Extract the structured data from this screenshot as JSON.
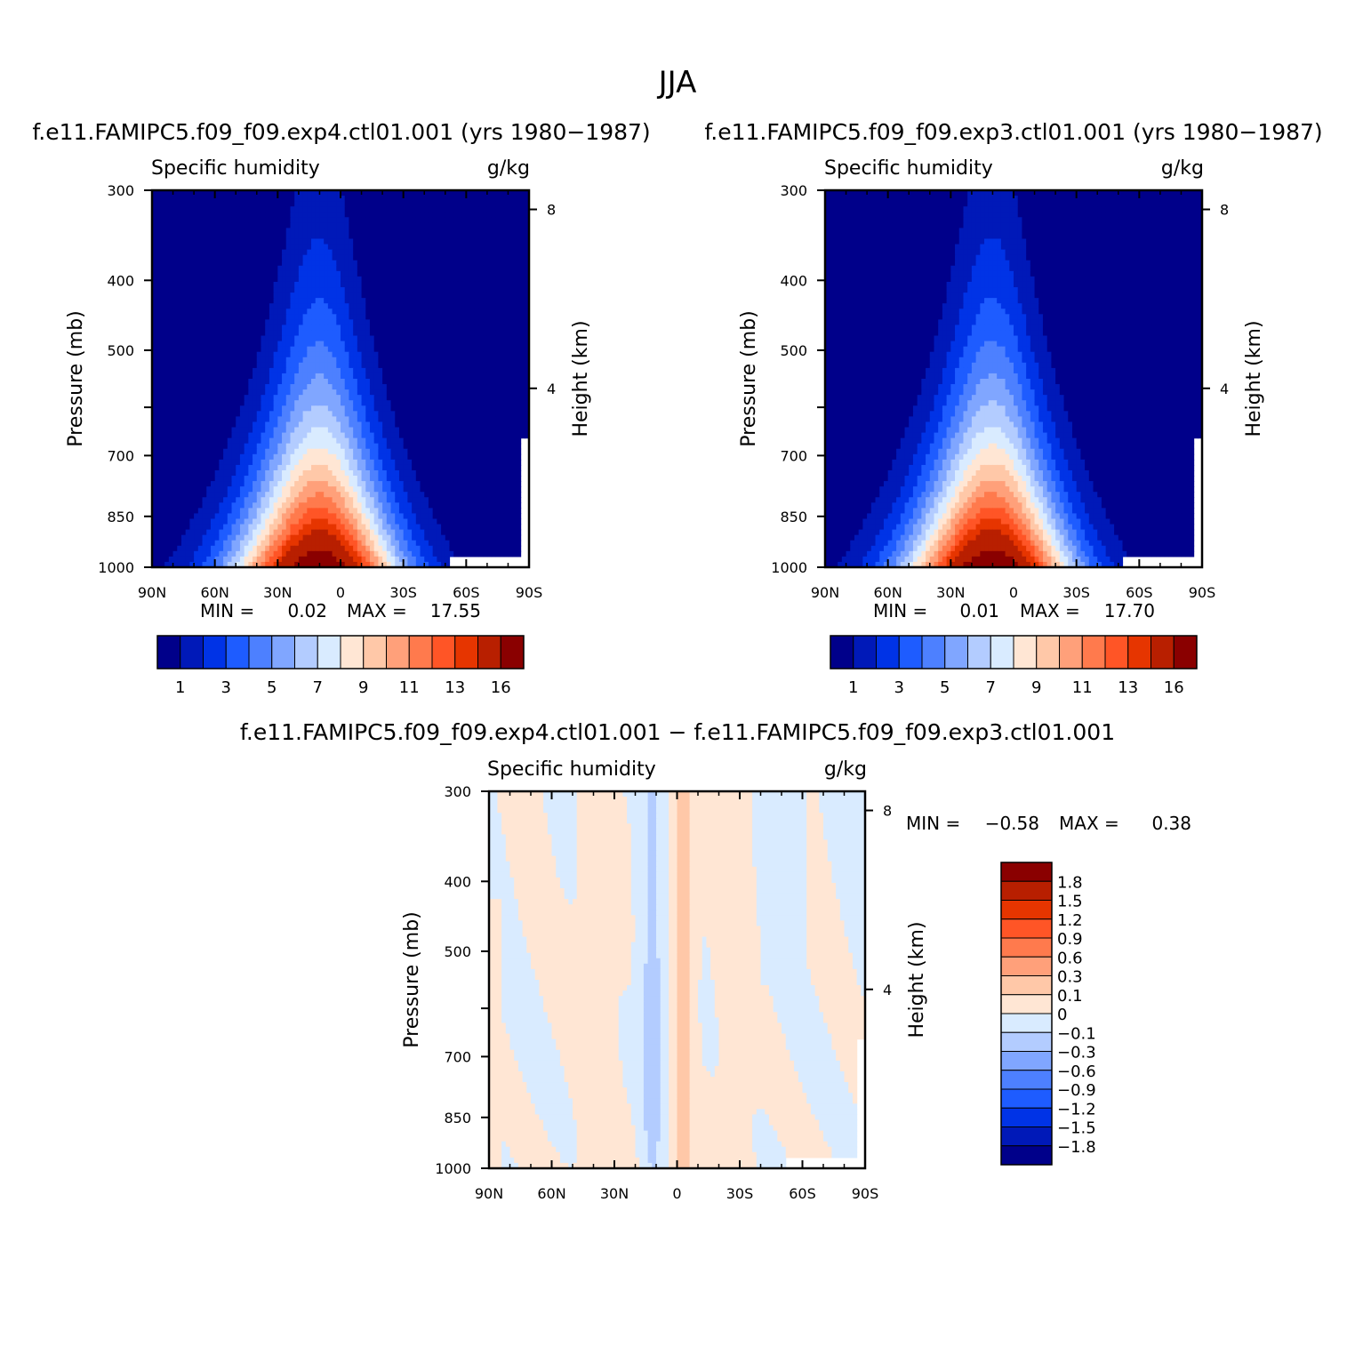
{
  "title": "JJA",
  "chart_data": [
    {
      "type": "heatmap",
      "subtitle": "f.e11.FAMIPC5.f09_f09.exp4.ctl01.001 (yrs 1980−1987)",
      "left_label": "Specific humidity",
      "right_label": "g/kg",
      "ylabel": "Pressure (mb)",
      "ylabel_right": "Height (km)",
      "x_ticks": [
        "90N",
        "60N",
        "30N",
        "0",
        "30S",
        "60S",
        "90S"
      ],
      "y_ticks": [
        "300",
        "400",
        "500",
        "700",
        "850",
        "1000"
      ],
      "y_ticks_right": [
        "8",
        "4"
      ],
      "min_label": "MIN =",
      "min_value": "0.02",
      "max_label": "MAX =",
      "max_value": "17.55",
      "colorbar_labels": [
        "1",
        "3",
        "5",
        "7",
        "9",
        "11",
        "13",
        "16"
      ],
      "peak": 17.55
    },
    {
      "type": "heatmap",
      "subtitle": "f.e11.FAMIPC5.f09_f09.exp3.ctl01.001 (yrs 1980−1987)",
      "left_label": "Specific humidity",
      "right_label": "g/kg",
      "ylabel": "Pressure (mb)",
      "ylabel_right": "Height (km)",
      "x_ticks": [
        "90N",
        "60N",
        "30N",
        "0",
        "30S",
        "60S",
        "90S"
      ],
      "y_ticks": [
        "300",
        "400",
        "500",
        "700",
        "850",
        "1000"
      ],
      "y_ticks_right": [
        "8",
        "4"
      ],
      "min_label": "MIN =",
      "min_value": "0.01",
      "max_label": "MAX =",
      "max_value": "17.70",
      "colorbar_labels": [
        "1",
        "3",
        "5",
        "7",
        "9",
        "11",
        "13",
        "16"
      ],
      "peak": 17.7
    },
    {
      "type": "heatmap",
      "subtitle": "f.e11.FAMIPC5.f09_f09.exp4.ctl01.001 − f.e11.FAMIPC5.f09_f09.exp3.ctl01.001",
      "left_label": "Specific humidity",
      "right_label": "g/kg",
      "ylabel": "Pressure (mb)",
      "ylabel_right": "Height (km)",
      "x_ticks": [
        "90N",
        "60N",
        "30N",
        "0",
        "30S",
        "60S",
        "90S"
      ],
      "y_ticks": [
        "300",
        "400",
        "500",
        "700",
        "850",
        "1000"
      ],
      "y_ticks_right": [
        "8",
        "4"
      ],
      "min_label": "MIN =",
      "min_value": "−0.58",
      "max_label": "MAX =",
      "max_value": "0.38",
      "colorbar_labels": [
        "1.8",
        "1.5",
        "1.2",
        "0.9",
        "0.6",
        "0.3",
        "0.1",
        "0",
        "−0.1",
        "−0.3",
        "−0.6",
        "−0.9",
        "−1.2",
        "−1.5",
        "−1.8"
      ]
    }
  ],
  "colors": {
    "humidity_scale": [
      "#00008a",
      "#0019b8",
      "#0033e6",
      "#1e5cff",
      "#4d80ff",
      "#80a6ff",
      "#b3ccff",
      "#d9ebff",
      "#ffe6d4",
      "#ffc8a8",
      "#ffa07a",
      "#ff7a4d",
      "#ff5526",
      "#e63500",
      "#b81f00",
      "#8a0000"
    ],
    "diff_scale_top_to_bottom": [
      "#8a0000",
      "#b81f00",
      "#e63500",
      "#ff5526",
      "#ff7a4d",
      "#ffa07a",
      "#ffc8a8",
      "#ffe6d4",
      "#d9ebff",
      "#b3ccff",
      "#80a6ff",
      "#4d80ff",
      "#1e5cff",
      "#0033e6",
      "#0019b8",
      "#00008a"
    ]
  }
}
